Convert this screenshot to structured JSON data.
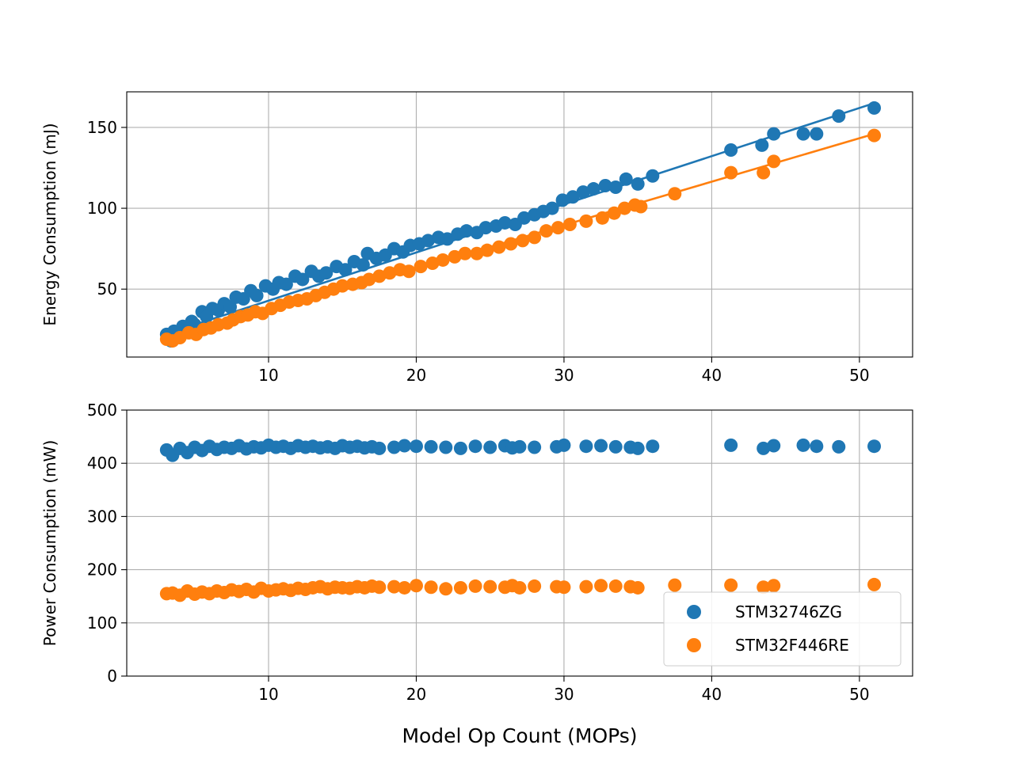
{
  "chart_data": [
    {
      "type": "scatter",
      "ylabel": "Energy Consumption (mJ)",
      "xlabel": "",
      "xlim": [
        0.4,
        53.6
      ],
      "ylim": [
        8,
        172
      ],
      "xticks": [
        10,
        20,
        30,
        40,
        50
      ],
      "yticks": [
        50,
        100,
        150
      ],
      "grid": true,
      "series": [
        {
          "name": "STM32746ZG",
          "color": "#1f77b4",
          "x": [
            3.1,
            3.4,
            3.6,
            4.2,
            4.8,
            5.0,
            5.5,
            5.8,
            6.2,
            6.6,
            7.0,
            7.4,
            7.8,
            8.3,
            8.8,
            9.2,
            9.8,
            10.3,
            10.7,
            11.2,
            11.8,
            12.3,
            12.9,
            13.4,
            13.9,
            14.6,
            15.2,
            15.8,
            16.4,
            16.7,
            17.3,
            17.9,
            18.5,
            19.1,
            19.6,
            20.2,
            20.8,
            21.5,
            22.1,
            22.8,
            23.4,
            24.1,
            24.7,
            25.4,
            26.0,
            26.7,
            27.3,
            28.0,
            28.6,
            29.2,
            29.9,
            30.6,
            31.3,
            32.0,
            32.8,
            33.5,
            34.2,
            35.0,
            36.0,
            41.3,
            43.4,
            44.2,
            46.2,
            47.1,
            48.6,
            51.0
          ],
          "y": [
            22,
            18,
            24,
            27,
            30,
            28,
            36,
            33,
            38,
            37,
            41,
            39,
            45,
            44,
            49,
            46,
            52,
            50,
            54,
            53,
            58,
            56,
            61,
            58,
            60,
            64,
            62,
            67,
            65,
            72,
            69,
            71,
            75,
            73,
            77,
            78,
            80,
            82,
            81,
            84,
            86,
            85,
            88,
            89,
            91,
            90,
            94,
            96,
            98,
            100,
            105,
            107,
            110,
            112,
            114,
            113,
            118,
            115,
            120,
            136,
            139,
            146,
            146,
            146,
            157,
            162
          ],
          "fit_line": {
            "x": [
              3.0,
              51.0
            ],
            "y": [
              22,
              165
            ]
          }
        },
        {
          "name": "STM32F446RE",
          "color": "#ff7f0e",
          "x": [
            3.1,
            3.5,
            4.0,
            4.6,
            5.1,
            5.6,
            6.1,
            6.6,
            7.2,
            7.6,
            8.1,
            8.6,
            9.1,
            9.6,
            10.2,
            10.8,
            11.4,
            12.0,
            12.6,
            13.2,
            13.8,
            14.4,
            15.0,
            15.7,
            16.3,
            16.8,
            17.5,
            18.2,
            18.9,
            19.5,
            20.3,
            21.1,
            21.8,
            22.6,
            23.3,
            24.1,
            24.8,
            25.6,
            26.4,
            27.2,
            28.0,
            28.8,
            29.6,
            30.4,
            31.5,
            32.6,
            33.4,
            34.1,
            34.8,
            35.2,
            37.5,
            41.3,
            43.5,
            44.2,
            51.0
          ],
          "y": [
            19,
            18,
            20,
            23,
            22,
            25,
            26,
            28,
            29,
            31,
            33,
            34,
            36,
            35,
            38,
            40,
            42,
            43,
            44,
            46,
            48,
            50,
            52,
            53,
            54,
            56,
            58,
            60,
            62,
            61,
            64,
            66,
            68,
            70,
            72,
            72,
            74,
            76,
            78,
            80,
            82,
            86,
            88,
            90,
            92,
            94,
            97,
            100,
            102,
            101,
            109,
            122,
            122,
            129,
            145
          ],
          "fit_line": {
            "x": [
              3.0,
              51.0
            ],
            "y": [
              17,
              146
            ]
          }
        }
      ]
    },
    {
      "type": "scatter",
      "ylabel": "Power Consumption (mW)",
      "xlabel": "Model Op Count (MOPs)",
      "xlim": [
        0.4,
        53.6
      ],
      "ylim": [
        0,
        500
      ],
      "xticks": [
        10,
        20,
        30,
        40,
        50
      ],
      "yticks": [
        0,
        100,
        200,
        300,
        400,
        500
      ],
      "grid": true,
      "legend": {
        "position": "lower-right",
        "entries": [
          "STM32746ZG",
          "STM32F446RE"
        ]
      },
      "series": [
        {
          "name": "STM32746ZG",
          "color": "#1f77b4",
          "x": [
            3.1,
            3.5,
            4.0,
            4.5,
            5.0,
            5.5,
            6.0,
            6.5,
            7.0,
            7.5,
            8.0,
            8.5,
            9.0,
            9.5,
            10.0,
            10.5,
            11.0,
            11.5,
            12.0,
            12.5,
            13.0,
            13.5,
            14.0,
            14.5,
            15.0,
            15.5,
            16.0,
            16.5,
            17.0,
            17.5,
            18.5,
            19.2,
            20.0,
            21.0,
            22.0,
            23.0,
            24.0,
            25.0,
            26.0,
            26.5,
            27.0,
            28.0,
            29.5,
            30.0,
            31.5,
            32.5,
            33.5,
            34.5,
            35.0,
            36.0,
            41.3,
            43.5,
            44.2,
            46.2,
            47.1,
            48.6,
            51.0
          ],
          "y": [
            425,
            415,
            428,
            420,
            430,
            424,
            432,
            426,
            430,
            428,
            433,
            427,
            431,
            429,
            434,
            430,
            432,
            428,
            433,
            430,
            432,
            429,
            431,
            428,
            433,
            430,
            432,
            429,
            431,
            428,
            430,
            433,
            432,
            431,
            430,
            428,
            432,
            430,
            433,
            429,
            431,
            430,
            431,
            434,
            432,
            433,
            431,
            430,
            428,
            432,
            434,
            428,
            433,
            434,
            432,
            431,
            432
          ]
        },
        {
          "name": "STM32F446RE",
          "color": "#ff7f0e",
          "x": [
            3.1,
            3.5,
            4.0,
            4.5,
            5.0,
            5.5,
            6.0,
            6.5,
            7.0,
            7.5,
            8.0,
            8.5,
            9.0,
            9.5,
            10.0,
            10.5,
            11.0,
            11.5,
            12.0,
            12.5,
            13.0,
            13.5,
            14.0,
            14.5,
            15.0,
            15.5,
            16.0,
            16.5,
            17.0,
            17.5,
            18.5,
            19.2,
            20.0,
            21.0,
            22.0,
            23.0,
            24.0,
            25.0,
            26.0,
            26.5,
            27.0,
            28.0,
            29.5,
            30.0,
            31.5,
            32.5,
            33.5,
            34.5,
            35.0,
            37.5,
            41.3,
            43.5,
            44.2,
            51.0
          ],
          "y": [
            155,
            156,
            152,
            160,
            154,
            158,
            155,
            160,
            157,
            162,
            159,
            163,
            158,
            165,
            160,
            162,
            164,
            161,
            165,
            163,
            166,
            168,
            164,
            167,
            166,
            165,
            168,
            166,
            169,
            167,
            168,
            166,
            170,
            167,
            164,
            166,
            169,
            168,
            167,
            170,
            166,
            169,
            168,
            167,
            168,
            170,
            169,
            168,
            166,
            171,
            171,
            167,
            170,
            172
          ]
        }
      ]
    }
  ]
}
